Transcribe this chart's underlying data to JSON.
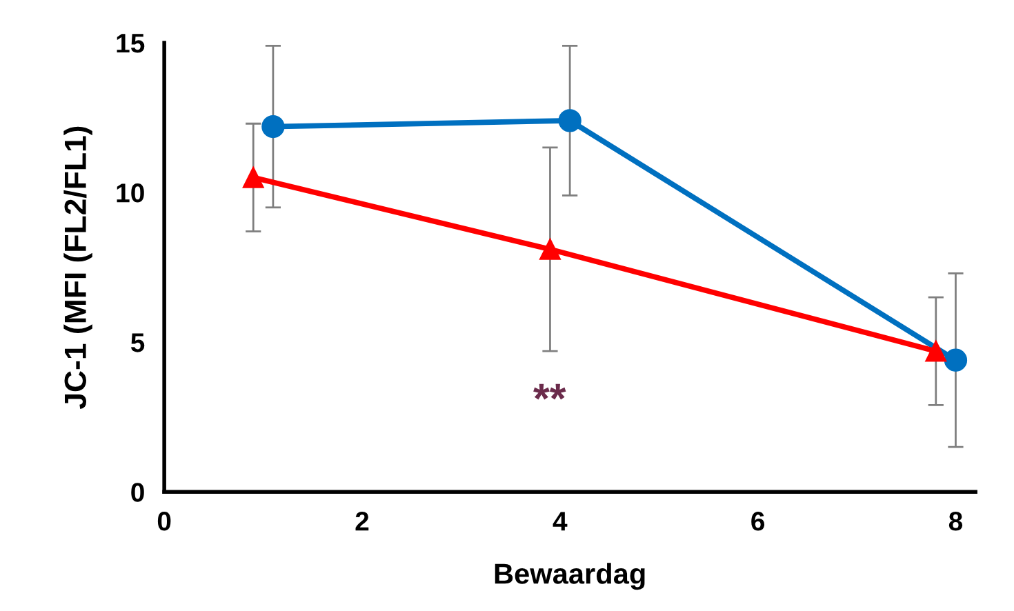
{
  "chart_data": {
    "type": "line",
    "xlabel": "Bewaardag",
    "ylabel": "JC-1 (MFI (FL2/FL1)",
    "series": [
      {
        "color": "#0070c0",
        "marker": "circle",
        "x": [
          1.1,
          4.1,
          8.0
        ],
        "values": [
          12.2,
          12.4,
          4.4
        ],
        "errors": [
          2.7,
          2.5,
          2.9
        ]
      },
      {
        "color": "#ff0000",
        "marker": "triangle",
        "x": [
          0.9,
          3.9,
          7.8
        ],
        "values": [
          10.5,
          8.1,
          4.7
        ],
        "errors": [
          1.8,
          3.4,
          1.8
        ]
      }
    ],
    "annotations": [
      "**"
    ],
    "xlim": [
      0,
      8.2
    ],
    "xticks": [
      0,
      2,
      4,
      6,
      8
    ],
    "ylim": [
      0,
      15
    ],
    "yticks": [
      0,
      5,
      10,
      15
    ],
    "grid": false
  }
}
